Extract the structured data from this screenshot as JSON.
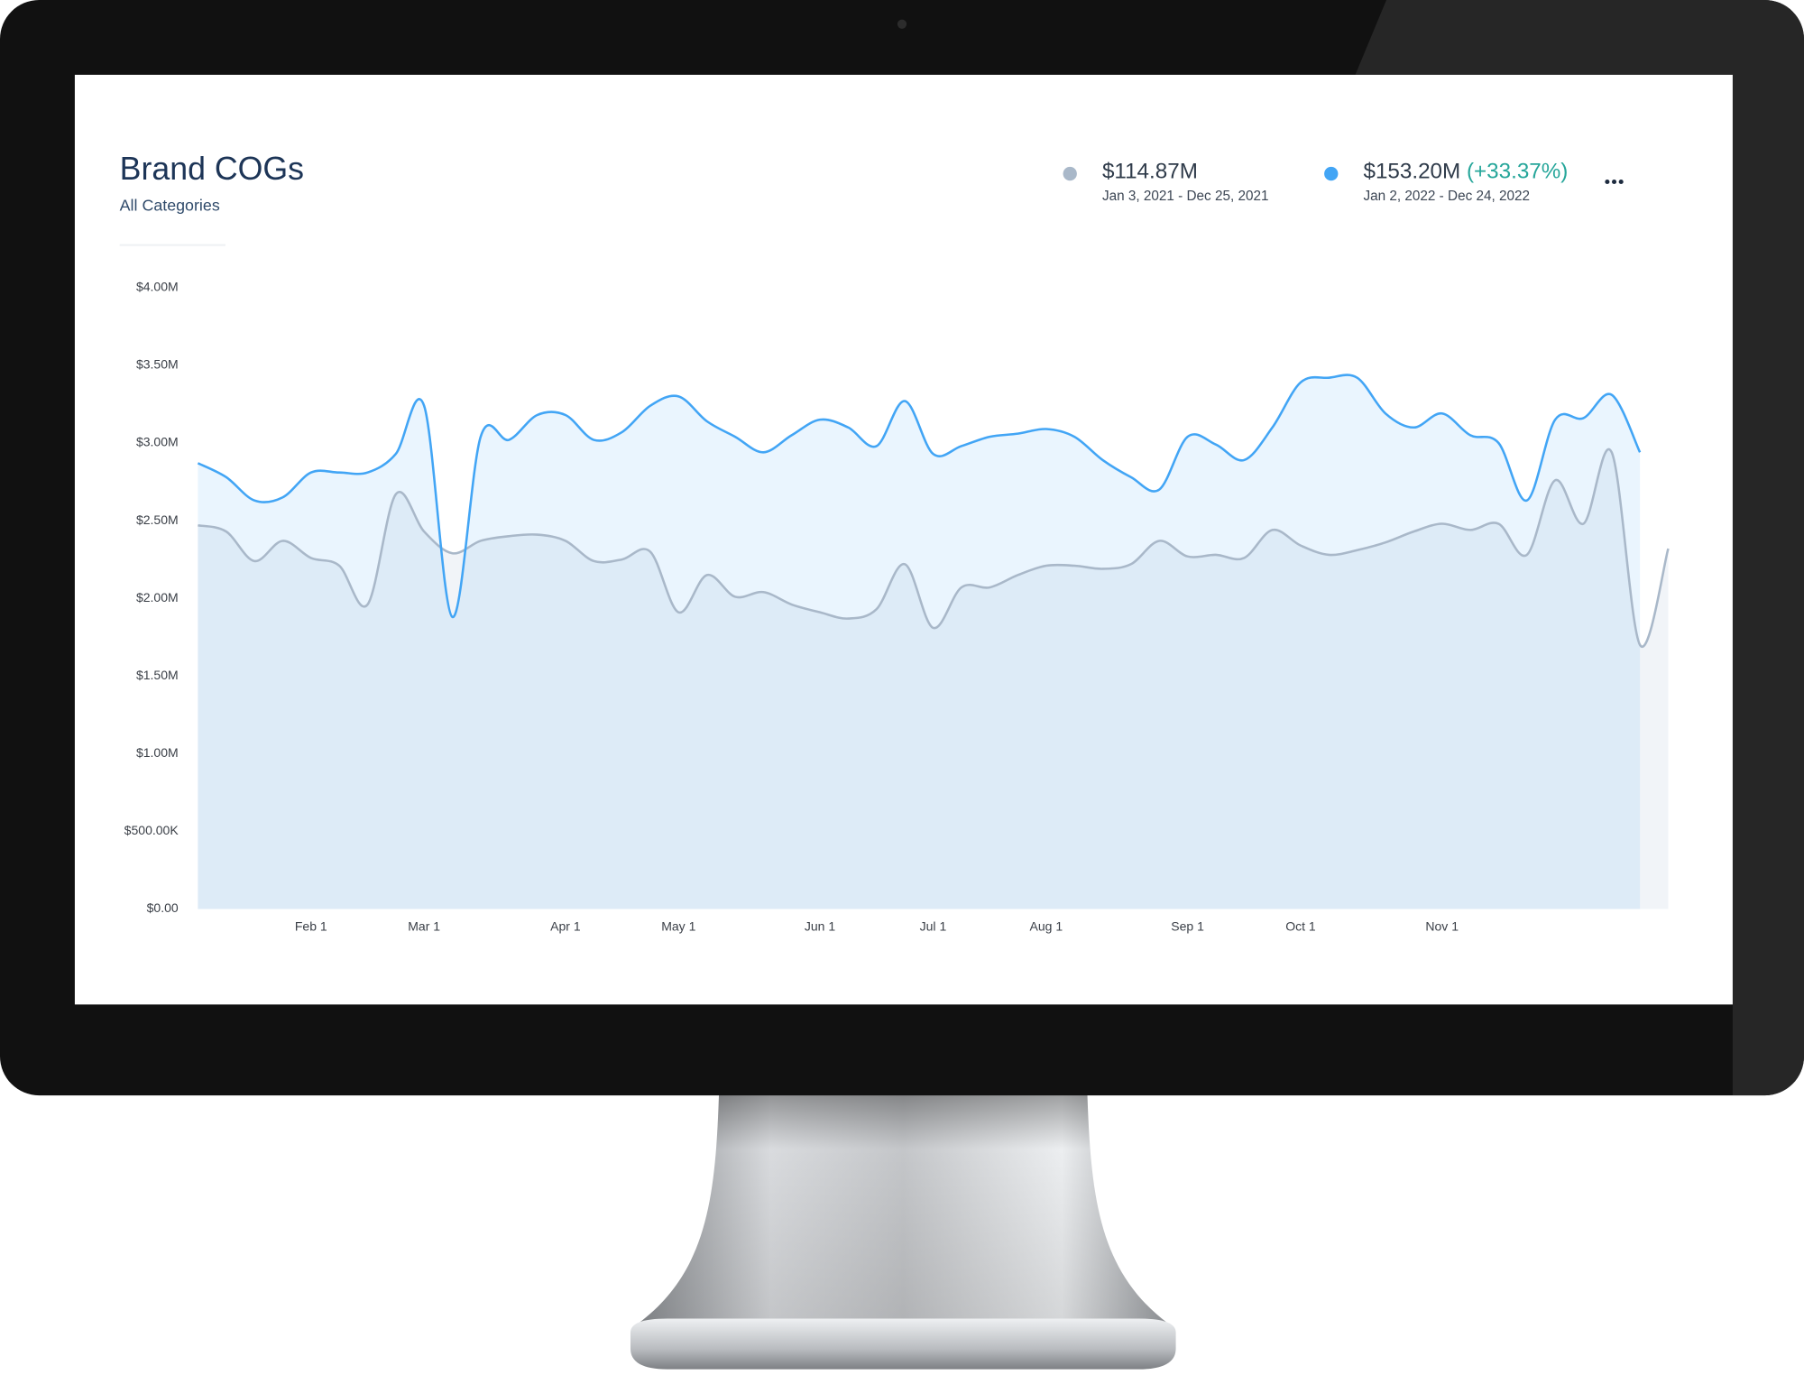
{
  "chart_data": {
    "type": "line",
    "title": "Brand COGs",
    "subtitle": "All Categories",
    "categories": [
      null,
      null,
      null,
      null,
      "Feb 1",
      null,
      null,
      null,
      "Mar 1",
      null,
      null,
      null,
      null,
      "Apr 1",
      null,
      null,
      null,
      "May 1",
      null,
      null,
      null,
      null,
      "Jun 1",
      null,
      null,
      null,
      "Jul 1",
      null,
      null,
      null,
      "Aug 1",
      null,
      null,
      null,
      null,
      "Sep 1",
      null,
      null,
      null,
      "Oct 1",
      null,
      null,
      null,
      null,
      "Nov 1",
      null,
      null,
      null,
      null,
      null,
      null,
      null,
      null
    ],
    "series": [
      {
        "name": "Jan 3, 2021 - Dec 25, 2021",
        "total": "$114.87M",
        "color": "#a9b8c9",
        "fill": "rgba(140,165,195,0.12)",
        "values": [
          2470000,
          2430000,
          2240000,
          2370000,
          2260000,
          2210000,
          1960000,
          2670000,
          2430000,
          2290000,
          2370000,
          2400000,
          2410000,
          2370000,
          2240000,
          2250000,
          2300000,
          1910000,
          2150000,
          2010000,
          2040000,
          1960000,
          1910000,
          1870000,
          1930000,
          2220000,
          1810000,
          2070000,
          2070000,
          2150000,
          2210000,
          2210000,
          2190000,
          2220000,
          2370000,
          2270000,
          2280000,
          2260000,
          2440000,
          2340000,
          2280000,
          2310000,
          2360000,
          2430000,
          2480000,
          2440000,
          2480000,
          2280000,
          2760000,
          2480000,
          2940000,
          1700000,
          2320000
        ]
      },
      {
        "name": "Jan 2, 2022 - Dec 24, 2022",
        "total": "$153.20M",
        "change": "(+33.37%)",
        "color": "#42a5f5",
        "fill": "rgba(66,165,245,0.11)",
        "values": [
          2870000,
          2780000,
          2630000,
          2650000,
          2810000,
          2810000,
          2810000,
          2930000,
          3240000,
          1880000,
          3040000,
          3020000,
          3180000,
          3180000,
          3020000,
          3070000,
          3240000,
          3300000,
          3140000,
          3040000,
          2940000,
          3050000,
          3150000,
          3100000,
          2980000,
          3270000,
          2930000,
          2980000,
          3040000,
          3060000,
          3090000,
          3040000,
          2890000,
          2780000,
          2700000,
          3040000,
          2990000,
          2890000,
          3100000,
          3390000,
          3420000,
          3420000,
          3190000,
          3100000,
          3190000,
          3050000,
          3000000,
          2630000,
          3150000,
          3160000,
          3310000,
          2940000,
          null
        ]
      }
    ],
    "change_color": "#26a69a",
    "ylim": [
      0,
      4000000
    ],
    "yticks": [
      {
        "value": 0,
        "label": "$0.00"
      },
      {
        "value": 500000,
        "label": "$500.00K"
      },
      {
        "value": 1000000,
        "label": "$1.00M"
      },
      {
        "value": 1500000,
        "label": "$1.50M"
      },
      {
        "value": 2000000,
        "label": "$2.00M"
      },
      {
        "value": 2500000,
        "label": "$2.50M"
      },
      {
        "value": 3000000,
        "label": "$3.00M"
      },
      {
        "value": 3500000,
        "label": "$3.50M"
      },
      {
        "value": 4000000,
        "label": "$4.00M"
      }
    ],
    "grid": false
  }
}
